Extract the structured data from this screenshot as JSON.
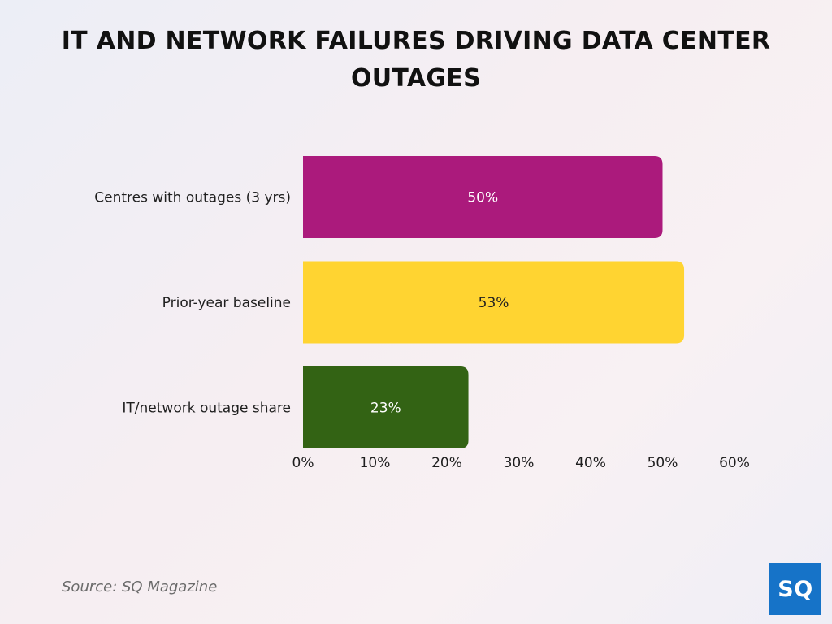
{
  "title": "IT AND NETWORK FAILURES DRIVING DATA CENTER OUTAGES",
  "source": "Source: SQ Magazine",
  "logo_text": "SQ",
  "colors": {
    "background": "#f3eff4",
    "title": "#111111",
    "logo": "#1673c8"
  },
  "chart_data": {
    "type": "bar",
    "orientation": "horizontal",
    "title": "IT AND NETWORK FAILURES DRIVING DATA CENTER OUTAGES",
    "xlabel": "",
    "ylabel": "",
    "categories": [
      "Centres with outages (3 yrs)",
      "Prior-year baseline",
      "IT/network outage share"
    ],
    "values": [
      50,
      53,
      23
    ],
    "value_labels": [
      "50%",
      "53%",
      "23%"
    ],
    "bar_colors": [
      "#ab1a7c",
      "#ffd431",
      "#336314"
    ],
    "label_colors": [
      "#ffffff",
      "#222222",
      "#ffffff"
    ],
    "xlim": [
      0,
      60
    ],
    "ticks": [
      0,
      10,
      20,
      30,
      40,
      50,
      60
    ],
    "tick_labels": [
      "0%",
      "10%",
      "20%",
      "30%",
      "40%",
      "50%",
      "60%"
    ],
    "grid": false,
    "legend": "none"
  }
}
